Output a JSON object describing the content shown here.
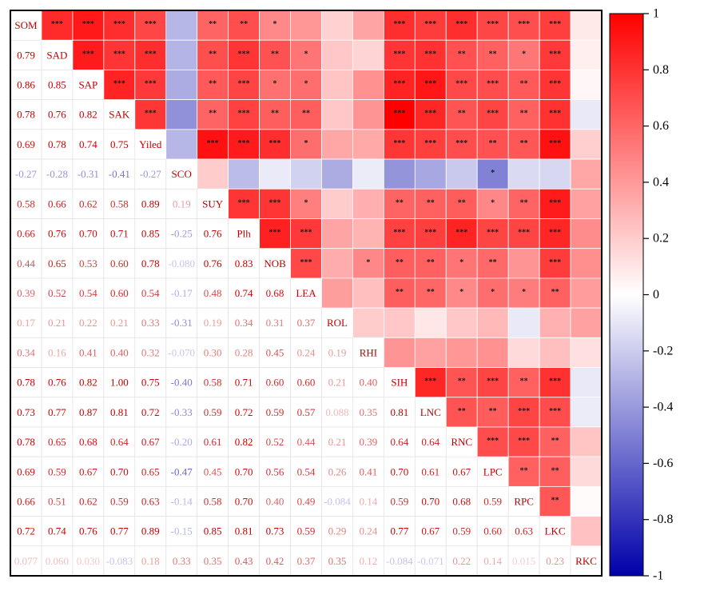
{
  "chart_data": {
    "type": "heatmap",
    "variables": [
      "SOM",
      "SAD",
      "SAP",
      "SAK",
      "Yiled",
      "SCO",
      "SUY",
      "Plh",
      "NOB",
      "LEA",
      "ROL",
      "RHI",
      "SIH",
      "LNC",
      "RNC",
      "LPC",
      "RPC",
      "LKC",
      "RKC"
    ],
    "lower_labels": [
      [],
      [
        "0.79"
      ],
      [
        "0.86",
        "0.85"
      ],
      [
        "0.78",
        "0.76",
        "0.82"
      ],
      [
        "0.69",
        "0.78",
        "0.74",
        "0.75"
      ],
      [
        "-0.27",
        "-0.28",
        "-0.31",
        "-0.41",
        "-0.27"
      ],
      [
        "0.58",
        "0.66",
        "0.62",
        "0.58",
        "0.89",
        "0.19"
      ],
      [
        "0.66",
        "0.76",
        "0.70",
        "0.71",
        "0.85",
        "-0.25",
        "0.76"
      ],
      [
        "0.44",
        "0.65",
        "0.53",
        "0.60",
        "0.78",
        "-0.080",
        "0.76",
        "0.83"
      ],
      [
        "0.39",
        "0.52",
        "0.54",
        "0.60",
        "0.54",
        "-0.17",
        "0.48",
        "0.74",
        "0.68"
      ],
      [
        "0.17",
        "0.21",
        "0.22",
        "0.21",
        "0.33",
        "-0.31",
        "0.19",
        "0.34",
        "0.31",
        "0.37"
      ],
      [
        "0.34",
        "0.16",
        "0.41",
        "0.40",
        "0.32",
        "-0.070",
        "0.30",
        "0.28",
        "0.45",
        "0.24",
        "0.19"
      ],
      [
        "0.78",
        "0.76",
        "0.82",
        "1.00",
        "0.75",
        "-0.40",
        "0.58",
        "0.71",
        "0.60",
        "0.60",
        "0.21",
        "0.40"
      ],
      [
        "0.73",
        "0.77",
        "0.87",
        "0.81",
        "0.72",
        "-0.33",
        "0.59",
        "0.72",
        "0.59",
        "0.57",
        "0.088",
        "0.35",
        "0.81"
      ],
      [
        "0.78",
        "0.65",
        "0.68",
        "0.64",
        "0.67",
        "-0.20",
        "0.61",
        "0.82",
        "0.52",
        "0.44",
        "0.21",
        "0.39",
        "0.64",
        "0.64"
      ],
      [
        "0.69",
        "0.59",
        "0.67",
        "0.70",
        "0.65",
        "-0.47",
        "0.45",
        "0.70",
        "0.56",
        "0.54",
        "0.26",
        "0.41",
        "0.70",
        "0.61",
        "0.67"
      ],
      [
        "0.66",
        "0.51",
        "0.62",
        "0.59",
        "0.63",
        "-0.14",
        "0.58",
        "0.70",
        "0.40",
        "0.49",
        "-0.084",
        "0.14",
        "0.59",
        "0.70",
        "0.68",
        "0.59"
      ],
      [
        "0.72",
        "0.74",
        "0.76",
        "0.77",
        "0.89",
        "-0.15",
        "0.85",
        "0.81",
        "0.73",
        "0.59",
        "0.29",
        "0.24",
        "0.77",
        "0.67",
        "0.59",
        "0.60",
        "0.63"
      ],
      [
        "0.077",
        "0.060",
        "0.030",
        "-0.083",
        "0.18",
        "0.33",
        "0.35",
        "0.43",
        "0.42",
        "0.37",
        "0.35",
        "0.12",
        "-0.084",
        "-0.071",
        "0.22",
        "0.14",
        "0.015",
        "0.23"
      ]
    ],
    "significance": [
      [
        "",
        "***",
        "***",
        "***",
        "***",
        "",
        "**",
        "**",
        "*",
        "",
        "",
        "",
        "***",
        "***",
        "***",
        "***",
        "***",
        "***",
        ""
      ],
      [
        "",
        "",
        "***",
        "***",
        "***",
        "",
        "**",
        "***",
        "**",
        "*",
        "",
        "",
        "***",
        "***",
        "**",
        "**",
        "*",
        "***",
        ""
      ],
      [
        "",
        "",
        "",
        "***",
        "***",
        "",
        "**",
        "***",
        "*",
        "*",
        "",
        "",
        "***",
        "***",
        "***",
        "***",
        "**",
        "***",
        ""
      ],
      [
        "",
        "",
        "",
        "",
        "***",
        "",
        "**",
        "***",
        "**",
        "**",
        "",
        "",
        "***",
        "***",
        "**",
        "***",
        "**",
        "***",
        ""
      ],
      [
        "",
        "",
        "",
        "",
        "",
        "",
        "***",
        "***",
        "***",
        "*",
        "",
        "",
        "***",
        "***",
        "***",
        "**",
        "**",
        "***",
        ""
      ],
      [
        "",
        "",
        "",
        "",
        "",
        "",
        "",
        "",
        "",
        "",
        "",
        "",
        "",
        "",
        "",
        "*",
        "",
        "",
        ""
      ],
      [
        "",
        "",
        "",
        "",
        "",
        "",
        "",
        "***",
        "***",
        "*",
        "",
        "",
        "**",
        "**",
        "**",
        "*",
        "**",
        "***",
        ""
      ],
      [
        "",
        "",
        "",
        "",
        "",
        "",
        "",
        "",
        "***",
        "***",
        "",
        "",
        "***",
        "***",
        "***",
        "***",
        "***",
        "***",
        ""
      ],
      [
        "",
        "",
        "",
        "",
        "",
        "",
        "",
        "",
        "",
        "***",
        "",
        "*",
        "**",
        "**",
        "*",
        "**",
        "",
        "***",
        ""
      ],
      [
        "",
        "",
        "",
        "",
        "",
        "",
        "",
        "",
        "",
        "",
        "",
        "",
        "**",
        "**",
        "*",
        "*",
        "*",
        "**",
        ""
      ],
      [
        "",
        "",
        "",
        "",
        "",
        "",
        "",
        "",
        "",
        "",
        "",
        "",
        "",
        "",
        "",
        "",
        "",
        "",
        ""
      ],
      [
        "",
        "",
        "",
        "",
        "",
        "",
        "",
        "",
        "",
        "",
        "",
        "",
        "",
        "",
        "",
        "",
        "",
        "",
        ""
      ],
      [
        "",
        "",
        "",
        "",
        "",
        "",
        "",
        "",
        "",
        "",
        "",
        "",
        "",
        "***",
        "**",
        "***",
        "**",
        "***",
        ""
      ],
      [
        "",
        "",
        "",
        "",
        "",
        "",
        "",
        "",
        "",
        "",
        "",
        "",
        "",
        "",
        "**",
        "**",
        "***",
        "***",
        ""
      ],
      [
        "",
        "",
        "",
        "",
        "",
        "",
        "",
        "",
        "",
        "",
        "",
        "",
        "",
        "",
        "",
        "***",
        "***",
        "**",
        ""
      ],
      [
        "",
        "",
        "",
        "",
        "",
        "",
        "",
        "",
        "",
        "",
        "",
        "",
        "",
        "",
        "",
        "",
        "**",
        "**",
        ""
      ],
      [
        "",
        "",
        "",
        "",
        "",
        "",
        "",
        "",
        "",
        "",
        "",
        "",
        "",
        "",
        "",
        "",
        "",
        "**",
        ""
      ],
      [
        "",
        "",
        "",
        "",
        "",
        "",
        "",
        "",
        "",
        "",
        "",
        "",
        "",
        "",
        "",
        "",
        "",
        "",
        ""
      ],
      [
        "",
        "",
        "",
        "",
        "",
        "",
        "",
        "",
        "",
        "",
        "",
        "",
        "",
        "",
        "",
        "",
        "",
        "",
        ""
      ]
    ],
    "colorbar": {
      "range": [
        -1,
        1
      ],
      "ticks": [
        "1",
        "0.8",
        "0.6",
        "0.4",
        "0.2",
        "0",
        "-0.2",
        "-0.4",
        "-0.6",
        "-0.8",
        "-1"
      ],
      "colors": {
        "negative": "#0000aa",
        "middle": "#ffffff",
        "positive": "#ff0000"
      }
    }
  }
}
